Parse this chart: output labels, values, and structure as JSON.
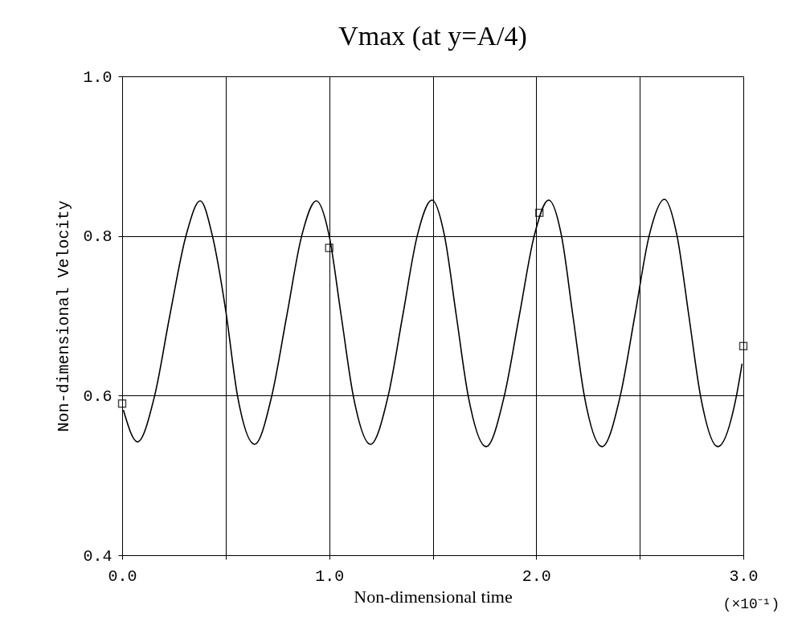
{
  "chart_data": {
    "type": "line",
    "title": "Vmax (at y=A/4)",
    "xlabel": "Non-dimensional time",
    "ylabel": "Non-dimensional Velocity",
    "annotations": [
      "(×10⁻¹)"
    ],
    "xlim": [
      0,
      3
    ],
    "ylim": [
      0.4,
      1.0
    ],
    "xticks": [
      {
        "value": 0,
        "label": "0.0"
      },
      {
        "value": 0.5,
        "label": null
      },
      {
        "value": 1,
        "label": "1.0"
      },
      {
        "value": 1.5,
        "label": null
      },
      {
        "value": 2,
        "label": "2.0"
      },
      {
        "value": 2.5,
        "label": null
      },
      {
        "value": 3,
        "label": "3.0"
      }
    ],
    "yticks": [
      0.4,
      0.6,
      0.8,
      {
        "value": 1,
        "label": "1.0"
      }
    ],
    "grid": true,
    "series": [
      {
        "color": "#000000",
        "marker": "none",
        "line_style": "solid",
        "x": [
          0.006,
          0.074,
          0.157,
          0.23,
          0.308,
          0.377,
          0.436,
          0.5,
          0.557,
          0.64,
          0.723,
          0.795,
          0.867,
          0.938,
          1.0,
          1.058,
          1.116,
          1.199,
          1.285,
          1.355,
          1.425,
          1.497,
          1.557,
          1.614,
          1.671,
          1.758,
          1.846,
          1.918,
          1.99,
          2.06,
          2.122,
          2.177,
          2.232,
          2.318,
          2.406,
          2.476,
          2.545,
          2.619,
          2.68,
          2.737,
          2.793,
          2.877,
          2.967,
          2.994
        ],
        "values": [
          0.582,
          0.542,
          0.6,
          0.7,
          0.8,
          0.844,
          0.8,
          0.707,
          0.6,
          0.539,
          0.6,
          0.7,
          0.8,
          0.844,
          0.8,
          0.7,
          0.6,
          0.539,
          0.6,
          0.7,
          0.8,
          0.845,
          0.8,
          0.7,
          0.6,
          0.536,
          0.6,
          0.7,
          0.8,
          0.845,
          0.8,
          0.7,
          0.6,
          0.536,
          0.6,
          0.7,
          0.8,
          0.846,
          0.8,
          0.7,
          0.6,
          0.536,
          0.6,
          0.64
        ]
      },
      {
        "type": "scatter",
        "color": "#000000",
        "marker": "square",
        "x": [
          0,
          1.0,
          2.015,
          3.0
        ],
        "values": [
          0.59,
          0.785,
          0.829,
          0.662
        ]
      }
    ]
  }
}
